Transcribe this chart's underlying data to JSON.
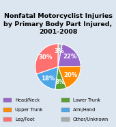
{
  "title": "Nonfatal Motorcyclist Injuries\nby Primary Body Part Injured,\n2001-2008",
  "slices": [
    {
      "label": "Other/Unknown",
      "value": 3.0,
      "pct": "3%",
      "color": "#aaaaaa"
    },
    {
      "label": "Head/Neck",
      "value": 21.7,
      "pct": "22%",
      "color": "#9966cc"
    },
    {
      "label": "Upper Trunk",
      "value": 19.5,
      "pct": "20%",
      "color": "#ff8c00"
    },
    {
      "label": "Lower Trunk",
      "value": 7.8,
      "pct": "8%",
      "color": "#5a9e30"
    },
    {
      "label": "Arm/Hand",
      "value": 17.8,
      "pct": "18%",
      "color": "#4da6e8"
    },
    {
      "label": "Leg/Foot",
      "value": 30.3,
      "pct": "30%",
      "color": "#ff7070"
    }
  ],
  "legend_order": [
    1,
    3,
    2,
    4,
    5,
    0
  ],
  "background_color": "#dce6f1",
  "title_fontsize": 6.8,
  "pct_fontsize": 6.2,
  "legend_fontsize": 4.8
}
